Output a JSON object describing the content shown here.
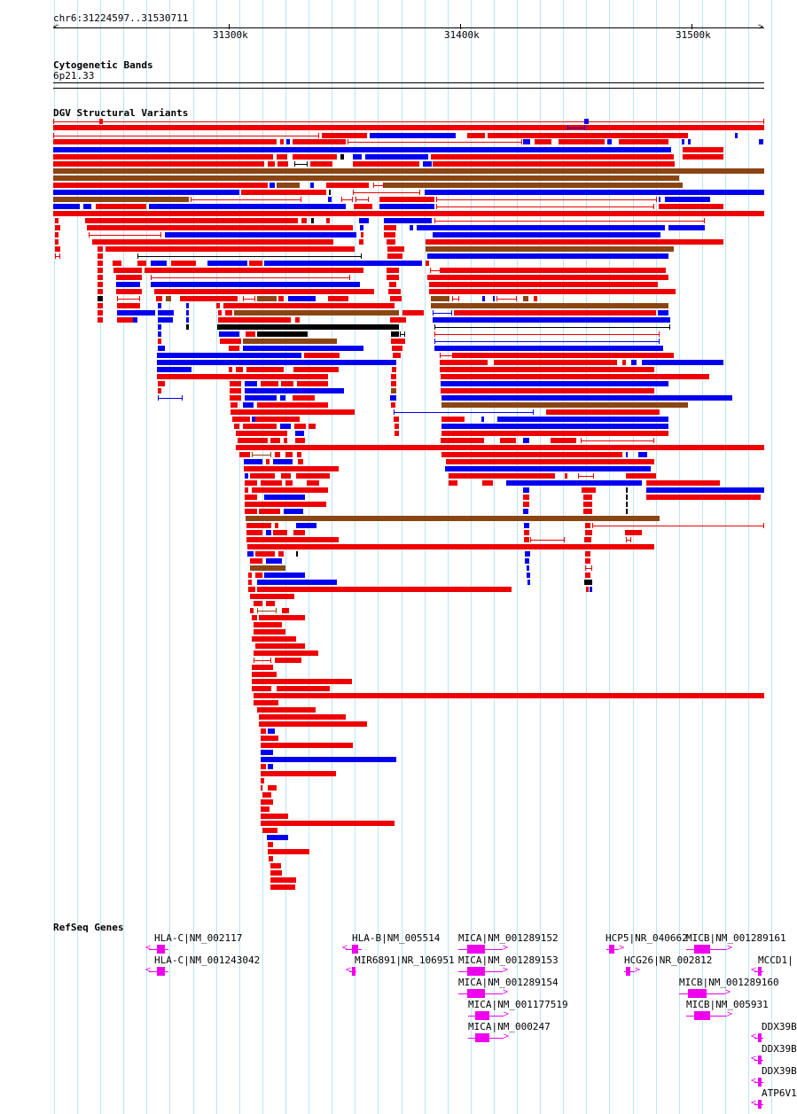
{
  "ruler": {
    "location": "chr6:31224597..31530711",
    "ticks": [
      "31300k",
      "31400k",
      "31500k"
    ]
  },
  "tracks": {
    "cytoband": {
      "title": "Cytogenetic Bands",
      "band": "6p21.33"
    },
    "dgv": {
      "title": "DGV Structural Variants"
    },
    "refseq": {
      "title": "RefSeq Genes"
    }
  },
  "colors": {
    "gain": "#ee0000",
    "loss": "#0000ee",
    "gain_loss": "#8b4513",
    "other": "#000000",
    "gene": "#ee00ee",
    "grid": "#b9e6f6"
  },
  "genes": [
    {
      "label": "HLA-C|NM_002117"
    },
    {
      "label": "HLA-C|NM_001243042"
    },
    {
      "label": "HLA-B|NM_005514"
    },
    {
      "label": "MIR6891|NR_106951"
    },
    {
      "label": "MICA|NM_001289152"
    },
    {
      "label": "MICA|NM_001289153"
    },
    {
      "label": "MICA|NM_001289154"
    },
    {
      "label": "MICA|NM_001177519"
    },
    {
      "label": "MICA|NM_000247"
    },
    {
      "label": "HCP5|NR_040662"
    },
    {
      "label": "HCG26|NR_002812"
    },
    {
      "label": "MICB|NM_001289161"
    },
    {
      "label": "MICB|NM_001289160"
    },
    {
      "label": "MICB|NM_005931"
    },
    {
      "label": "MCCD1|"
    },
    {
      "label": "DDX39B"
    },
    {
      "label": "DDX39B"
    },
    {
      "label": "DDX39B"
    },
    {
      "label": "ATP6V1"
    }
  ]
}
